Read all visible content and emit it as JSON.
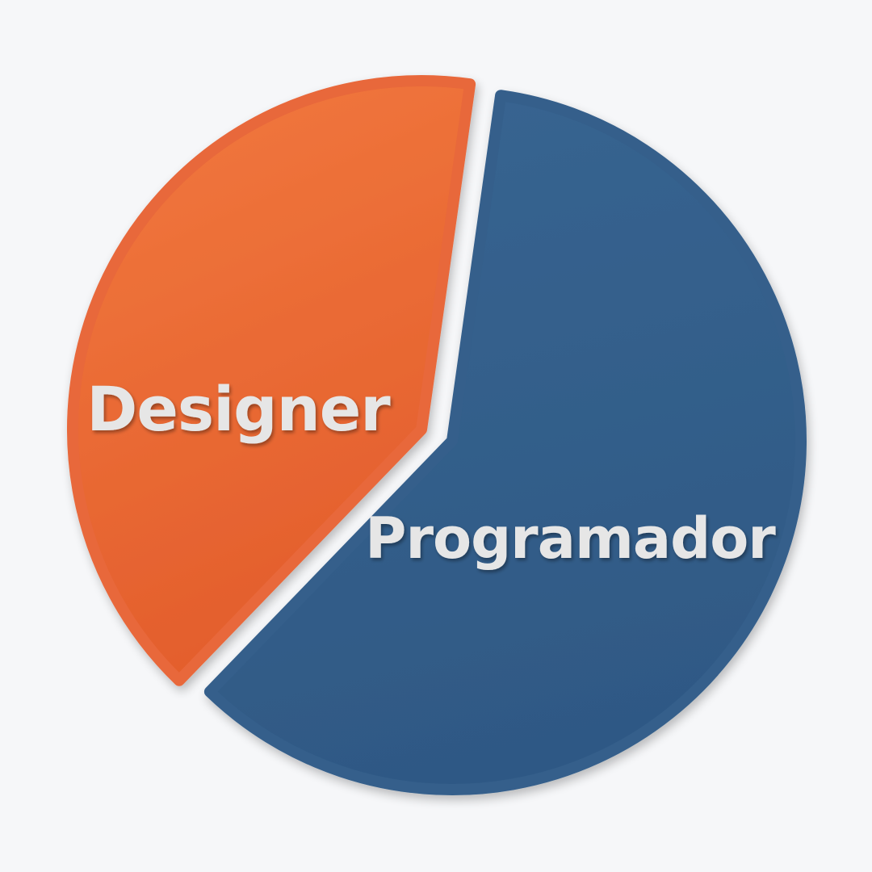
{
  "background": "#f6f7f9",
  "chart_data": {
    "type": "pie",
    "title": "",
    "categories": [
      "Designer",
      "Programador"
    ],
    "values": [
      40,
      60
    ],
    "colors": [
      "#e8673a",
      "#345f8b"
    ],
    "legend": "none",
    "labels_on_slices": true
  }
}
